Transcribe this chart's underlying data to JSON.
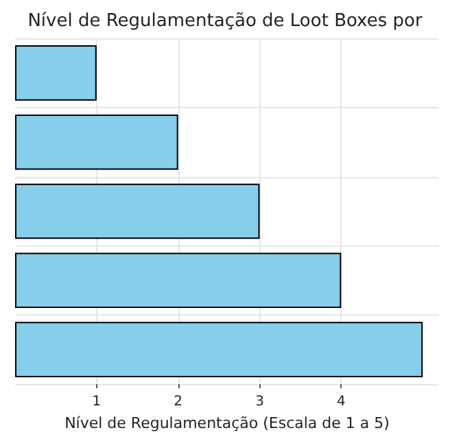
{
  "chart_data": {
    "type": "bar",
    "orientation": "horizontal",
    "title": "Nível de Regulamentação de Loot Boxes por",
    "xlabel": "Nível de Regulamentação (Escala de 1 a 5)",
    "categories": [
      null,
      null,
      null,
      null,
      null
    ],
    "values": [
      1,
      2,
      3,
      4,
      5
    ],
    "color": "#87ceeb",
    "xlim": [
      0,
      5.2
    ],
    "xticks": [
      1,
      2,
      3,
      4
    ],
    "grid": true
  }
}
